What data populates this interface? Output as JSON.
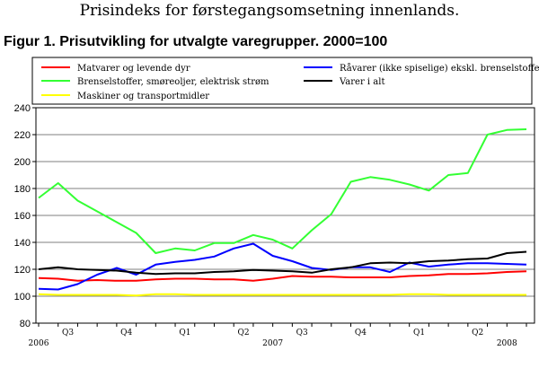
{
  "header": {
    "title": "Prisindeks for førstegangsomsetning innenlands.",
    "figure_title": "Figur 1. Prisutvikling for utvalgte varegrupper. 2000=100"
  },
  "chart_data": {
    "type": "line",
    "title": "Figur 1. Prisutvikling for utvalgte varegrupper. 2000=100",
    "xlabel": "",
    "ylabel": "",
    "ylim": [
      80,
      240
    ],
    "yticks": [
      80,
      100,
      120,
      140,
      160,
      180,
      200,
      220,
      240
    ],
    "grid": true,
    "legend_position": "top",
    "x": [
      "2006-06",
      "2006-07",
      "2006-08",
      "2006-09",
      "2006-10",
      "2006-11",
      "2006-12",
      "2007-01",
      "2007-02",
      "2007-03",
      "2007-04",
      "2007-05",
      "2007-06",
      "2007-07",
      "2007-08",
      "2007-09",
      "2007-10",
      "2007-11",
      "2007-12",
      "2008-01",
      "2008-02",
      "2008-03",
      "2008-04",
      "2008-05",
      "2008-06",
      "2008-07"
    ],
    "quarter_labels": [
      {
        "label": "Q3",
        "at": 1.5
      },
      {
        "label": "Q4",
        "at": 4.5
      },
      {
        "label": "Q1",
        "at": 7.5
      },
      {
        "label": "Q2",
        "at": 10.5
      },
      {
        "label": "Q3",
        "at": 13.5
      },
      {
        "label": "Q4",
        "at": 16.5
      },
      {
        "label": "Q1",
        "at": 19.5
      },
      {
        "label": "Q2",
        "at": 22.5
      }
    ],
    "year_labels": [
      {
        "label": "2006",
        "at": 0
      },
      {
        "label": "2007",
        "at": 12
      },
      {
        "label": "2008",
        "at": 24
      }
    ],
    "series": [
      {
        "name": "Matvarer og levende dyr",
        "color": "#ff0000",
        "values": [
          113.5,
          113.0,
          111.5,
          112.0,
          111.5,
          111.5,
          112.5,
          113.0,
          113.0,
          112.5,
          112.5,
          111.5,
          113.0,
          115.0,
          114.5,
          114.5,
          114.0,
          114.0,
          114.0,
          115.0,
          115.5,
          116.5,
          116.5,
          117.0,
          118.0,
          118.5
        ]
      },
      {
        "name": "Brenselstoffer, smøreoljer, elektrisk strøm",
        "color": "#33ff33",
        "values": [
          173,
          184,
          171,
          163,
          155,
          147,
          132,
          135.5,
          134,
          139.5,
          139.5,
          145.5,
          142,
          135.5,
          149,
          161,
          185,
          188.5,
          186.5,
          183,
          178.5,
          190,
          191.5,
          220,
          223.5,
          224
        ]
      },
      {
        "name": "Maskiner og transportmidler",
        "color": "#ffff00",
        "values": [
          101.5,
          101.0,
          101.0,
          101.0,
          101.0,
          100.5,
          101.5,
          101.5,
          101.0,
          101.0,
          101.0,
          101.0,
          101.0,
          101.0,
          101.0,
          101.0,
          101.0,
          101.0,
          101.0,
          101.5,
          101.5,
          101.0,
          101.0,
          101.0,
          101.0,
          101.0
        ]
      },
      {
        "name": "Råvarer (ikke spiselige) ekskl. brenselstoffer",
        "color": "#0000ff",
        "values": [
          105.5,
          105,
          109,
          116,
          121,
          116,
          123.5,
          125.5,
          127,
          129.5,
          135.5,
          139,
          130,
          126,
          121,
          119.5,
          121.5,
          121.5,
          118,
          125,
          122,
          123.5,
          124.5,
          124.5,
          124,
          123.5
        ]
      },
      {
        "name": "Varer i alt",
        "color": "#000000",
        "values": [
          120,
          121.5,
          120,
          119.5,
          119,
          117.5,
          116.5,
          117,
          117,
          118,
          118.5,
          119.5,
          119,
          118.5,
          117.5,
          120,
          121.5,
          124.5,
          125,
          124.5,
          126,
          126.5,
          127.5,
          128,
          132,
          133
        ]
      }
    ]
  }
}
